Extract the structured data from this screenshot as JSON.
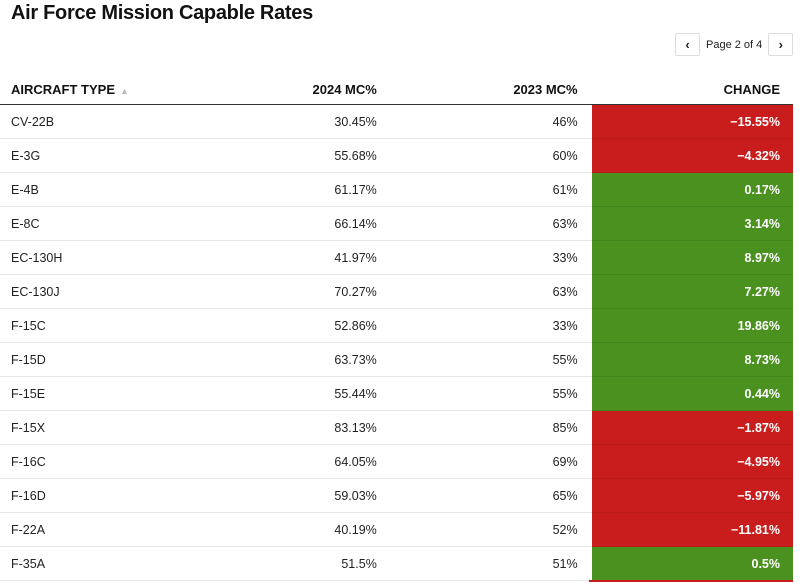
{
  "title": "Air Force Mission Capable Rates",
  "pager": {
    "label": "Page 2 of 4",
    "prev_icon": "chevron-left-icon",
    "next_icon": "chevron-right-icon"
  },
  "colors": {
    "negative": "#c91d1d",
    "positive": "#4b9120"
  },
  "columns": [
    "AIRCRAFT TYPE",
    "2024 MC%",
    "2023 MC%",
    "CHANGE"
  ],
  "sort_indicator": "▲",
  "rows": [
    {
      "type": "CV-22B",
      "mc2024": "30.45%",
      "mc2023": "46%",
      "change": "−15.55%",
      "sign": "neg"
    },
    {
      "type": "E-3G",
      "mc2024": "55.68%",
      "mc2023": "60%",
      "change": "−4.32%",
      "sign": "neg"
    },
    {
      "type": "E-4B",
      "mc2024": "61.17%",
      "mc2023": "61%",
      "change": "0.17%",
      "sign": "pos"
    },
    {
      "type": "E-8C",
      "mc2024": "66.14%",
      "mc2023": "63%",
      "change": "3.14%",
      "sign": "pos"
    },
    {
      "type": "EC-130H",
      "mc2024": "41.97%",
      "mc2023": "33%",
      "change": "8.97%",
      "sign": "pos"
    },
    {
      "type": "EC-130J",
      "mc2024": "70.27%",
      "mc2023": "63%",
      "change": "7.27%",
      "sign": "pos"
    },
    {
      "type": "F-15C",
      "mc2024": "52.86%",
      "mc2023": "33%",
      "change": "19.86%",
      "sign": "pos"
    },
    {
      "type": "F-15D",
      "mc2024": "63.73%",
      "mc2023": "55%",
      "change": "8.73%",
      "sign": "pos"
    },
    {
      "type": "F-15E",
      "mc2024": "55.44%",
      "mc2023": "55%",
      "change": "0.44%",
      "sign": "pos"
    },
    {
      "type": "F-15X",
      "mc2024": "83.13%",
      "mc2023": "85%",
      "change": "−1.87%",
      "sign": "neg"
    },
    {
      "type": "F-16C",
      "mc2024": "64.05%",
      "mc2023": "69%",
      "change": "−4.95%",
      "sign": "neg"
    },
    {
      "type": "F-16D",
      "mc2024": "59.03%",
      "mc2023": "65%",
      "change": "−5.97%",
      "sign": "neg"
    },
    {
      "type": "F-22A",
      "mc2024": "40.19%",
      "mc2023": "52%",
      "change": "−11.81%",
      "sign": "neg"
    },
    {
      "type": "F-35A",
      "mc2024": "51.5%",
      "mc2023": "51%",
      "change": "0.5%",
      "sign": "pos"
    }
  ]
}
